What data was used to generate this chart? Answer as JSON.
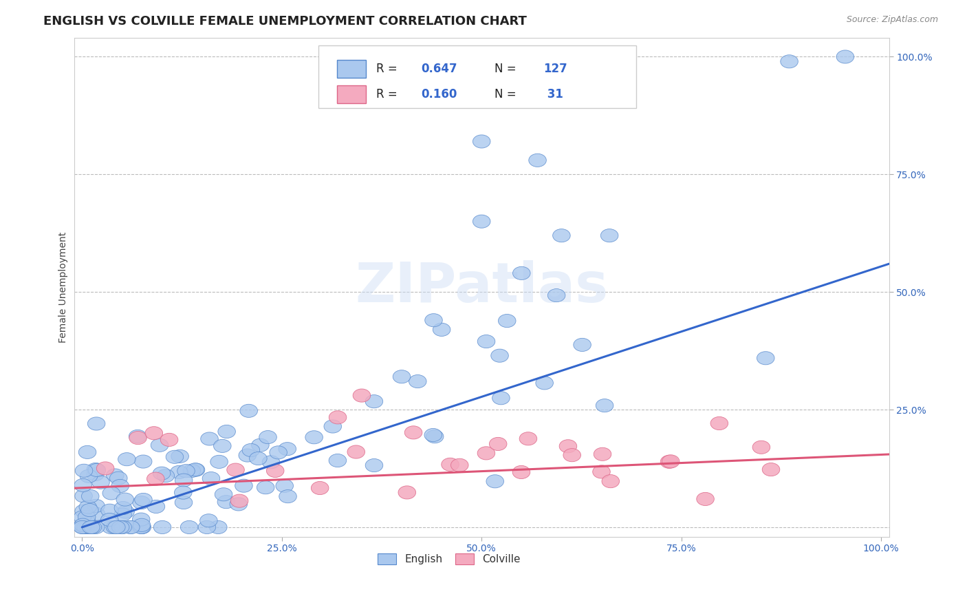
{
  "title": "ENGLISH VS COLVILLE FEMALE UNEMPLOYMENT CORRELATION CHART",
  "source": "Source: ZipAtlas.com",
  "ylabel": "Female Unemployment",
  "xticklabels": [
    "0.0%",
    "25.0%",
    "50.0%",
    "75.0%",
    "100.0%"
  ],
  "yticklabels_right": [
    "25.0%",
    "50.0%",
    "75.0%",
    "100.0%"
  ],
  "english_R": 0.647,
  "english_N": 127,
  "colville_R": 0.16,
  "colville_N": 31,
  "english_color": "#aac8ee",
  "english_edge_color": "#5588cc",
  "english_line_color": "#3366cc",
  "colville_color": "#f4aabf",
  "colville_edge_color": "#dd6688",
  "colville_line_color": "#dd5577",
  "watermark": "ZIPatlas",
  "background_color": "#ffffff",
  "title_fontsize": 13,
  "axis_label_fontsize": 10,
  "tick_fontsize": 10,
  "legend_fontsize": 12,
  "source_fontsize": 9
}
